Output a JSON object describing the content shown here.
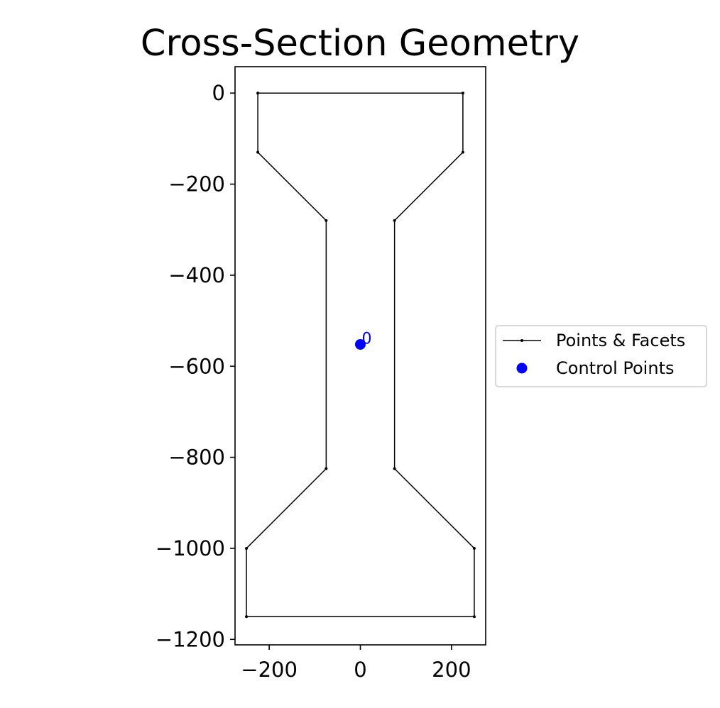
{
  "chart_data": {
    "type": "line",
    "title": "Cross-Section Geometry",
    "xlabel": "",
    "ylabel": "",
    "xlim": [
      -275,
      275
    ],
    "ylim": [
      -1212,
      58
    ],
    "xticks": [
      {
        "value": -200,
        "label": "−200"
      },
      {
        "value": 0,
        "label": "0"
      },
      {
        "value": 200,
        "label": "200"
      }
    ],
    "yticks": [
      {
        "value": 0,
        "label": "0"
      },
      {
        "value": -200,
        "label": "−200"
      },
      {
        "value": -400,
        "label": "−400"
      },
      {
        "value": -600,
        "label": "−600"
      },
      {
        "value": -800,
        "label": "−800"
      },
      {
        "value": -1000,
        "label": "−1000"
      },
      {
        "value": -1200,
        "label": "−1200"
      }
    ],
    "grid": false,
    "legend_position": "center-right-outside",
    "series": [
      {
        "name": "Points & Facets",
        "color": "#000000",
        "closed": true,
        "points": [
          [
            -225,
            0
          ],
          [
            225,
            0
          ],
          [
            225,
            -130
          ],
          [
            75,
            -280
          ],
          [
            75,
            -825
          ],
          [
            250,
            -1000
          ],
          [
            250,
            -1150
          ],
          [
            -250,
            -1150
          ],
          [
            -250,
            -1000
          ],
          [
            -75,
            -825
          ],
          [
            -75,
            -280
          ],
          [
            -225,
            -130
          ]
        ]
      },
      {
        "name": "Control Points",
        "color": "#0000ff",
        "points": [
          [
            0,
            -552
          ]
        ],
        "labels": [
          "0"
        ]
      }
    ]
  }
}
